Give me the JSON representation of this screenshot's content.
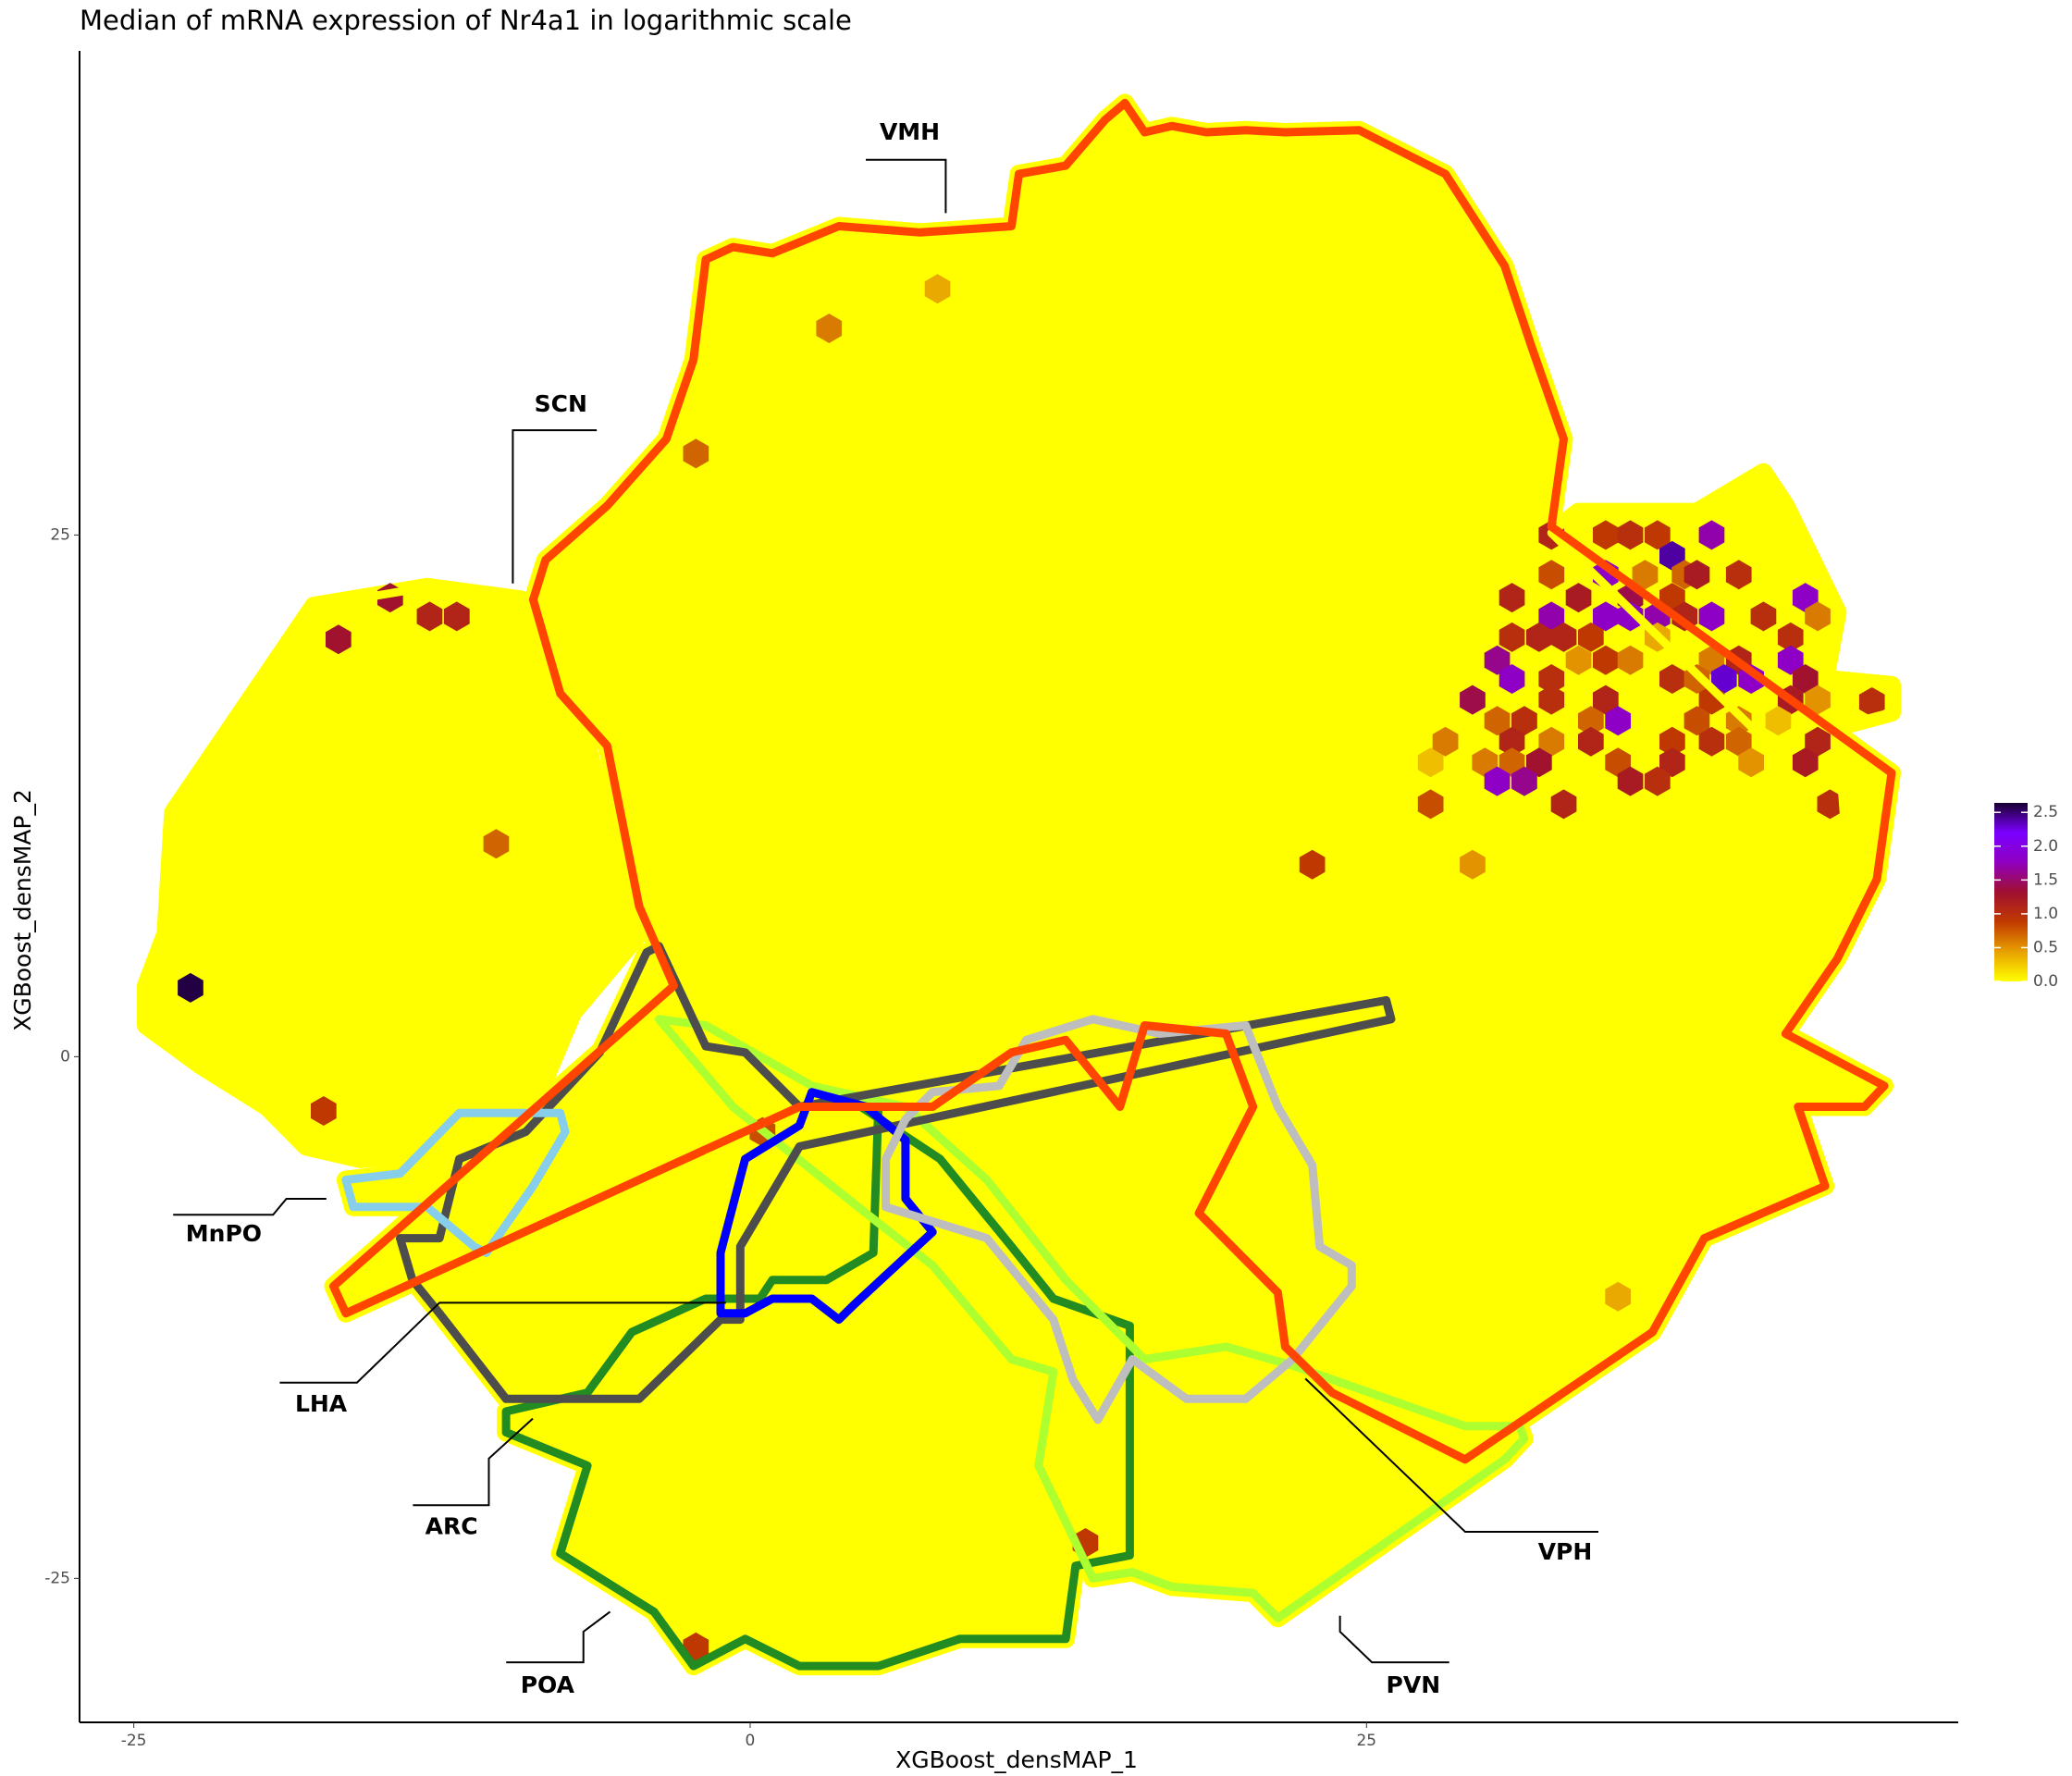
{
  "chart_data": {
    "type": "hexbin",
    "title": "Median of mRNA expression of Nr4a1 in logarithmic scale",
    "xlabel": "XGBoost_densMAP_1",
    "ylabel": "XGBoost_densMAP_2",
    "xlim": [
      -27.2,
      49
    ],
    "ylim": [
      -31.9,
      48.2
    ],
    "xticks": [
      -25,
      0,
      25
    ],
    "yticks": [
      -25,
      0,
      25
    ],
    "fill_color": "#ffff00",
    "colormap": [
      "#ffff00",
      "#e8a000",
      "#c03a00",
      "#a01030",
      "#9000c0",
      "#7a00ff",
      "#1a0030"
    ],
    "clim": [
      0,
      2.64
    ],
    "colorbar_ticks": [
      {
        "value": 0,
        "label": "0.0"
      },
      0.5,
      {
        "value": 1,
        "label": "1.0"
      },
      1.5,
      {
        "value": 2,
        "label": "2.0"
      },
      2.5
    ],
    "hexes": {
      "x": [
        7.6,
        3.2,
        -2.2,
        -14.6,
        -16.7,
        -13.0,
        -11.9,
        -10.3,
        -22.7,
        -17.3,
        0.5,
        22.8,
        29.3,
        27.6,
        27.6,
        35.2,
        13.6,
        -2.2,
        45.5,
        43.8,
        32.5,
        34.7,
        35.7,
        36.8,
        39.0,
        37.4,
        32.5,
        34.7,
        36.3,
        37.9,
        40.1,
        38.4,
        30.9,
        33.6,
        35.7,
        37.4,
        42.8,
        32.5,
        34.7,
        35.7,
        36.8,
        37.9,
        39.0,
        41.1,
        43.3,
        30.9,
        32.0,
        33.0,
        34.1,
        36.8,
        42.2,
        30.3,
        33.6,
        34.7,
        35.7,
        39.0,
        40.1,
        42.2,
        30.9,
        32.5,
        37.4,
        38.4,
        39.5,
        40.6,
        42.8,
        29.3,
        32.5,
        34.7,
        39.0,
        42.2,
        43.3,
        28.2,
        30.3,
        31.4,
        34.1,
        35.2,
        38.4,
        40.1,
        41.7,
        30.9,
        32.5,
        34.1,
        37.4,
        39.0,
        40.1,
        43.3,
        29.8,
        30.9,
        32.0,
        35.2,
        37.4,
        40.6,
        42.8,
        30.3,
        31.4,
        35.7,
        36.8,
        33.0
      ],
      "y": [
        36.8,
        34.9,
        28.9,
        22.0,
        20.0,
        21.1,
        21.1,
        10.2,
        3.3,
        -2.6,
        -3.6,
        9.2,
        9.2,
        12.1,
        14.1,
        -11.5,
        -23.3,
        -28.3,
        17.0,
        12.1,
        25.0,
        25.0,
        25.0,
        25.0,
        25.0,
        24.0,
        23.1,
        23.1,
        23.1,
        23.1,
        23.1,
        23.1,
        22.0,
        22.0,
        22.0,
        22.0,
        22.0,
        21.1,
        21.1,
        21.1,
        21.1,
        21.1,
        21.1,
        21.1,
        21.1,
        20.1,
        20.1,
        20.1,
        20.1,
        20.1,
        20.1,
        19.0,
        19.0,
        19.0,
        19.0,
        19.0,
        19.0,
        19.0,
        18.1,
        18.1,
        18.1,
        18.1,
        18.1,
        18.1,
        18.1,
        17.1,
        17.1,
        17.1,
        17.1,
        17.1,
        17.1,
        15.1,
        16.1,
        16.1,
        16.1,
        16.1,
        16.1,
        16.1,
        16.1,
        15.1,
        15.1,
        15.1,
        15.1,
        15.1,
        15.1,
        15.1,
        14.1,
        14.1,
        14.1,
        14.1,
        14.1,
        14.1,
        14.1,
        13.2,
        13.2,
        13.2,
        13.2,
        12.1
      ],
      "values": [
        0.4,
        0.6,
        0.7,
        1.3,
        1.3,
        1.1,
        1.1,
        0.7,
        2.6,
        0.9,
        0.8,
        0.9,
        0.5,
        0.8,
        0.3,
        0.4,
        0.9,
        0.9,
        1.0,
        1.0,
        1.1,
        0.9,
        1.0,
        0.9,
        1.7,
        2.4,
        0.8,
        1.8,
        0.6,
        0.7,
        1.0,
        1.2,
        1.1,
        1.2,
        1.4,
        0.9,
        1.8,
        1.7,
        1.8,
        1.8,
        1.7,
        1.1,
        1.8,
        1.0,
        0.6,
        1.0,
        1.1,
        1.1,
        0.9,
        0.4,
        1.0,
        1.6,
        0.5,
        0.9,
        0.6,
        0.6,
        1.1,
        1.8,
        1.8,
        1.0,
        1.0,
        0.7,
        2.3,
        1.8,
        1.3,
        1.4,
        1.0,
        1.1,
        0.9,
        1.2,
        0.5,
        0.6,
        0.7,
        1.0,
        0.7,
        1.8,
        0.8,
        0.6,
        0.3,
        1.1,
        0.6,
        1.1,
        0.9,
        1.0,
        0.7,
        1.1,
        0.6,
        0.7,
        1.3,
        0.8,
        1.1,
        0.5,
        1.2,
        1.8,
        1.6,
        1.2,
        1.0,
        1.1
      ]
    },
    "regions": [
      {
        "color": "#ffff00",
        "x": [
          -17.7,
          -13.1,
          -9.3,
          -8.3,
          -6.6,
          -5.6,
          -4.5,
          -7.2,
          -8.8,
          -12.6,
          -15.8,
          -18.0,
          -19.6,
          -22.3,
          -24.5,
          -24.5,
          -23.7,
          -23.4
        ],
        "y": [
          21.6,
          22.5,
          21.9,
          20.6,
          14.9,
          9.8,
          5.9,
          2.1,
          -2.4,
          -4.6,
          -4.9,
          -4.3,
          -2.4,
          -0.4,
          1.5,
          3.4,
          5.9,
          11.7
        ]
      },
      {
        "color": "#ffff00",
        "x": [
          33.6,
          38.4,
          41.1,
          42.0,
          44.1,
          43.6,
          46.3,
          46.3,
          44.1,
          44.4,
          43.0,
          41.4,
          32.5
        ],
        "y": [
          26.1,
          26.1,
          28.0,
          26.4,
          21.3,
          18.1,
          17.8,
          16.5,
          15.8,
          11.0,
          10.7,
          14.9,
          25.1
        ]
      },
      {
        "color": "#228b22",
        "x": [
          3.6,
          5.2,
          5.0,
          3.1,
          0.9,
          0.4,
          -1.8,
          -4.8,
          -6.6,
          -9.9,
          -9.9,
          -6.6,
          -7.7,
          -3.9,
          -2.3,
          -0.2,
          2.0,
          5.2,
          8.5,
          12.8,
          13.2,
          15.4,
          15.4,
          12.3,
          10.6,
          7.7
        ],
        "y": [
          -1.7,
          -2.4,
          -9.4,
          -10.7,
          -10.7,
          -11.6,
          -11.6,
          -13.2,
          -16.1,
          -17.0,
          -18.0,
          -19.6,
          -23.8,
          -26.6,
          -29.2,
          -27.9,
          -29.2,
          -29.2,
          -27.9,
          -27.9,
          -24.4,
          -23.9,
          -12.9,
          -11.6,
          -9.1,
          -4.9
        ]
      },
      {
        "color": "#adff2f",
        "x": [
          -3.7,
          -1.8,
          2.5,
          6.3,
          9.6,
          12.8,
          16.0,
          19.3,
          22.0,
          29.0,
          31.2,
          31.4,
          30.6,
          21.4,
          20.4,
          17.1,
          15.5,
          13.9,
          11.7,
          12.3,
          10.6,
          7.4,
          4.7,
          -0.7
        ],
        "y": [
          1.8,
          1.5,
          -1.4,
          -2.4,
          -5.9,
          -10.7,
          -14.5,
          -13.9,
          -14.8,
          -17.7,
          -17.7,
          -18.3,
          -19.3,
          -26.9,
          -25.7,
          -25.4,
          -24.7,
          -25.0,
          -19.6,
          -15.1,
          -14.5,
          -10.0,
          -7.5,
          -2.4
        ]
      },
      {
        "color": "#4d4d4d",
        "x": [
          -4.2,
          -3.7,
          -1.8,
          -0.2,
          2.0,
          25.8,
          26.0,
          2.0,
          -0.4,
          -0.4,
          -1.2,
          -4.5,
          -9.9,
          -12.6,
          -13.7,
          -14.2,
          -12.6,
          -11.8,
          -9.1,
          -6.1
        ],
        "y": [
          5.0,
          5.3,
          0.5,
          0.2,
          -2.4,
          2.7,
          1.8,
          -4.3,
          -9.1,
          -12.6,
          -12.6,
          -16.4,
          -16.4,
          -12.3,
          -10.7,
          -8.7,
          -8.7,
          -4.9,
          -3.6,
          0.2
        ]
      },
      {
        "color": "#0000ff",
        "x": [
          2.5,
          4.7,
          6.3,
          6.3,
          7.4,
          4.2,
          3.6,
          2.5,
          0.9,
          -0.2,
          -1.2,
          -1.2,
          -0.2,
          2.0
        ],
        "y": [
          -1.7,
          -2.4,
          -4.0,
          -6.8,
          -8.4,
          -11.9,
          -12.6,
          -11.6,
          -11.6,
          -12.3,
          -12.3,
          -9.4,
          -4.9,
          -3.3
        ]
      },
      {
        "color": "#87ceeb",
        "x": [
          -11.8,
          -7.7,
          -7.5,
          -8.8,
          -10.7,
          -11.2,
          -13.1,
          -16.1,
          -16.4,
          -14.2
        ],
        "y": [
          -2.7,
          -2.7,
          -3.6,
          -6.2,
          -9.4,
          -9.1,
          -7.2,
          -7.2,
          -5.9,
          -5.6
        ]
      },
      {
        "color": "#bebebe",
        "x": [
          7.4,
          10.1,
          11.2,
          13.9,
          16.6,
          20.1,
          21.4,
          22.8,
          23.1,
          24.4,
          24.4,
          22.0,
          20.1,
          17.7,
          15.5,
          14.1,
          13.1,
          12.3,
          9.6,
          5.5,
          5.5,
          6.3
        ],
        "y": [
          -1.7,
          -1.4,
          0.8,
          1.8,
          1.1,
          1.5,
          -2.4,
          -5.2,
          -9.1,
          -10.0,
          -11.0,
          -14.5,
          -16.4,
          -16.4,
          -14.5,
          -17.4,
          -15.5,
          -12.6,
          -8.7,
          -7.2,
          -4.9,
          -3.0
        ]
      },
      {
        "color": "#ff4500",
        "x": [
          15.2,
          16.0,
          17.1,
          18.5,
          20.1,
          21.7,
          24.7,
          28.2,
          30.6,
          31.7,
          33.0,
          32.5,
          46.3,
          45.7,
          44.1,
          42.0,
          46.0,
          45.2,
          42.5,
          43.6,
          38.7,
          36.6,
          29.0,
          23.6,
          21.7,
          21.4,
          18.2,
          20.4,
          19.3,
          16.0,
          15.0,
          12.8,
          10.6,
          7.4,
          2.0,
          -16.4,
          -16.9,
          -3.1,
          -4.5,
          -5.8,
          -7.7,
          -8.8,
          -8.3,
          -5.8,
          -3.4,
          -2.3,
          -1.8,
          -0.7,
          0.9,
          3.6,
          6.9,
          10.6,
          10.9,
          12.8,
          14.4
        ],
        "y": [
          45.7,
          44.3,
          44.6,
          44.3,
          44.4,
          44.3,
          44.4,
          42.3,
          37.9,
          34.0,
          29.6,
          25.4,
          13.6,
          8.5,
          4.7,
          1.1,
          -1.4,
          -2.4,
          -2.4,
          -6.2,
          -8.7,
          -13.2,
          -19.3,
          -16.1,
          -13.9,
          -11.3,
          -7.5,
          -2.4,
          1.1,
          1.5,
          -2.4,
          0.8,
          0.2,
          -2.4,
          -2.4,
          -12.3,
          -11.0,
          3.4,
          7.2,
          14.9,
          17.4,
          21.9,
          23.8,
          26.4,
          29.6,
          33.4,
          38.2,
          38.8,
          38.5,
          39.8,
          39.5,
          39.8,
          42.3,
          42.7,
          44.9
        ]
      }
    ],
    "annotations": [
      "VMH",
      "SCN",
      "MnPO",
      "LHA",
      "ARC",
      "POA",
      "PVN",
      "VPH"
    ]
  }
}
